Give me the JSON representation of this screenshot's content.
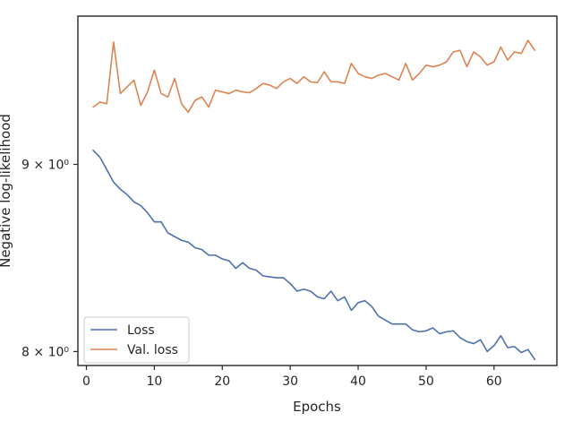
{
  "chart_data": {
    "type": "line",
    "xlabel": "Epochs",
    "ylabel": "Negative log-likelihood",
    "x_ticks": [
      0,
      10,
      20,
      30,
      40,
      50,
      60
    ],
    "y_ticks": [
      {
        "value": 8.0,
        "label": "8 × 10⁰"
      },
      {
        "value": 9.0,
        "label": "9 × 10⁰"
      }
    ],
    "y_scale": "log",
    "xlim": [
      -1.25,
      69.25
    ],
    "ylim": [
      7.93,
      9.88
    ],
    "grid": false,
    "legend_position": "lower-left",
    "x": [
      1,
      2,
      3,
      4,
      5,
      6,
      7,
      8,
      9,
      10,
      11,
      12,
      13,
      14,
      15,
      16,
      17,
      18,
      19,
      20,
      21,
      22,
      23,
      24,
      25,
      26,
      27,
      28,
      29,
      30,
      31,
      32,
      33,
      34,
      35,
      36,
      37,
      38,
      39,
      40,
      41,
      42,
      43,
      44,
      45,
      46,
      47,
      48,
      49,
      50,
      51,
      52,
      53,
      54,
      55,
      56,
      57,
      58,
      59,
      60,
      61,
      62,
      63,
      64,
      65,
      66
    ],
    "series": [
      {
        "name": "Loss",
        "color": "#4c72b0",
        "values": [
          9.08,
          9.04,
          8.97,
          8.9,
          8.86,
          8.83,
          8.79,
          8.77,
          8.73,
          8.68,
          8.68,
          8.62,
          8.6,
          8.58,
          8.57,
          8.54,
          8.53,
          8.5,
          8.5,
          8.48,
          8.47,
          8.43,
          8.46,
          8.43,
          8.42,
          8.39,
          8.385,
          8.38,
          8.38,
          8.35,
          8.31,
          8.32,
          8.31,
          8.28,
          8.27,
          8.31,
          8.26,
          8.28,
          8.21,
          8.25,
          8.26,
          8.23,
          8.18,
          8.16,
          8.14,
          8.14,
          8.14,
          8.11,
          8.1,
          8.105,
          8.12,
          8.09,
          8.1,
          8.105,
          8.07,
          8.05,
          8.04,
          8.06,
          8.0,
          8.03,
          8.08,
          8.02,
          8.025,
          7.995,
          8.01,
          7.96
        ]
      },
      {
        "name": "Val. loss",
        "color": "#dd8452",
        "values": [
          9.33,
          9.36,
          9.35,
          9.72,
          9.41,
          9.45,
          9.49,
          9.34,
          9.42,
          9.55,
          9.41,
          9.39,
          9.5,
          9.35,
          9.3,
          9.37,
          9.39,
          9.33,
          9.43,
          9.42,
          9.41,
          9.43,
          9.42,
          9.415,
          9.44,
          9.47,
          9.46,
          9.44,
          9.48,
          9.5,
          9.47,
          9.51,
          9.48,
          9.475,
          9.54,
          9.48,
          9.48,
          9.47,
          9.59,
          9.53,
          9.51,
          9.5,
          9.52,
          9.53,
          9.51,
          9.49,
          9.59,
          9.49,
          9.53,
          9.58,
          9.57,
          9.58,
          9.6,
          9.66,
          9.67,
          9.57,
          9.66,
          9.63,
          9.58,
          9.6,
          9.69,
          9.61,
          9.66,
          9.65,
          9.73,
          9.67
        ]
      }
    ]
  }
}
